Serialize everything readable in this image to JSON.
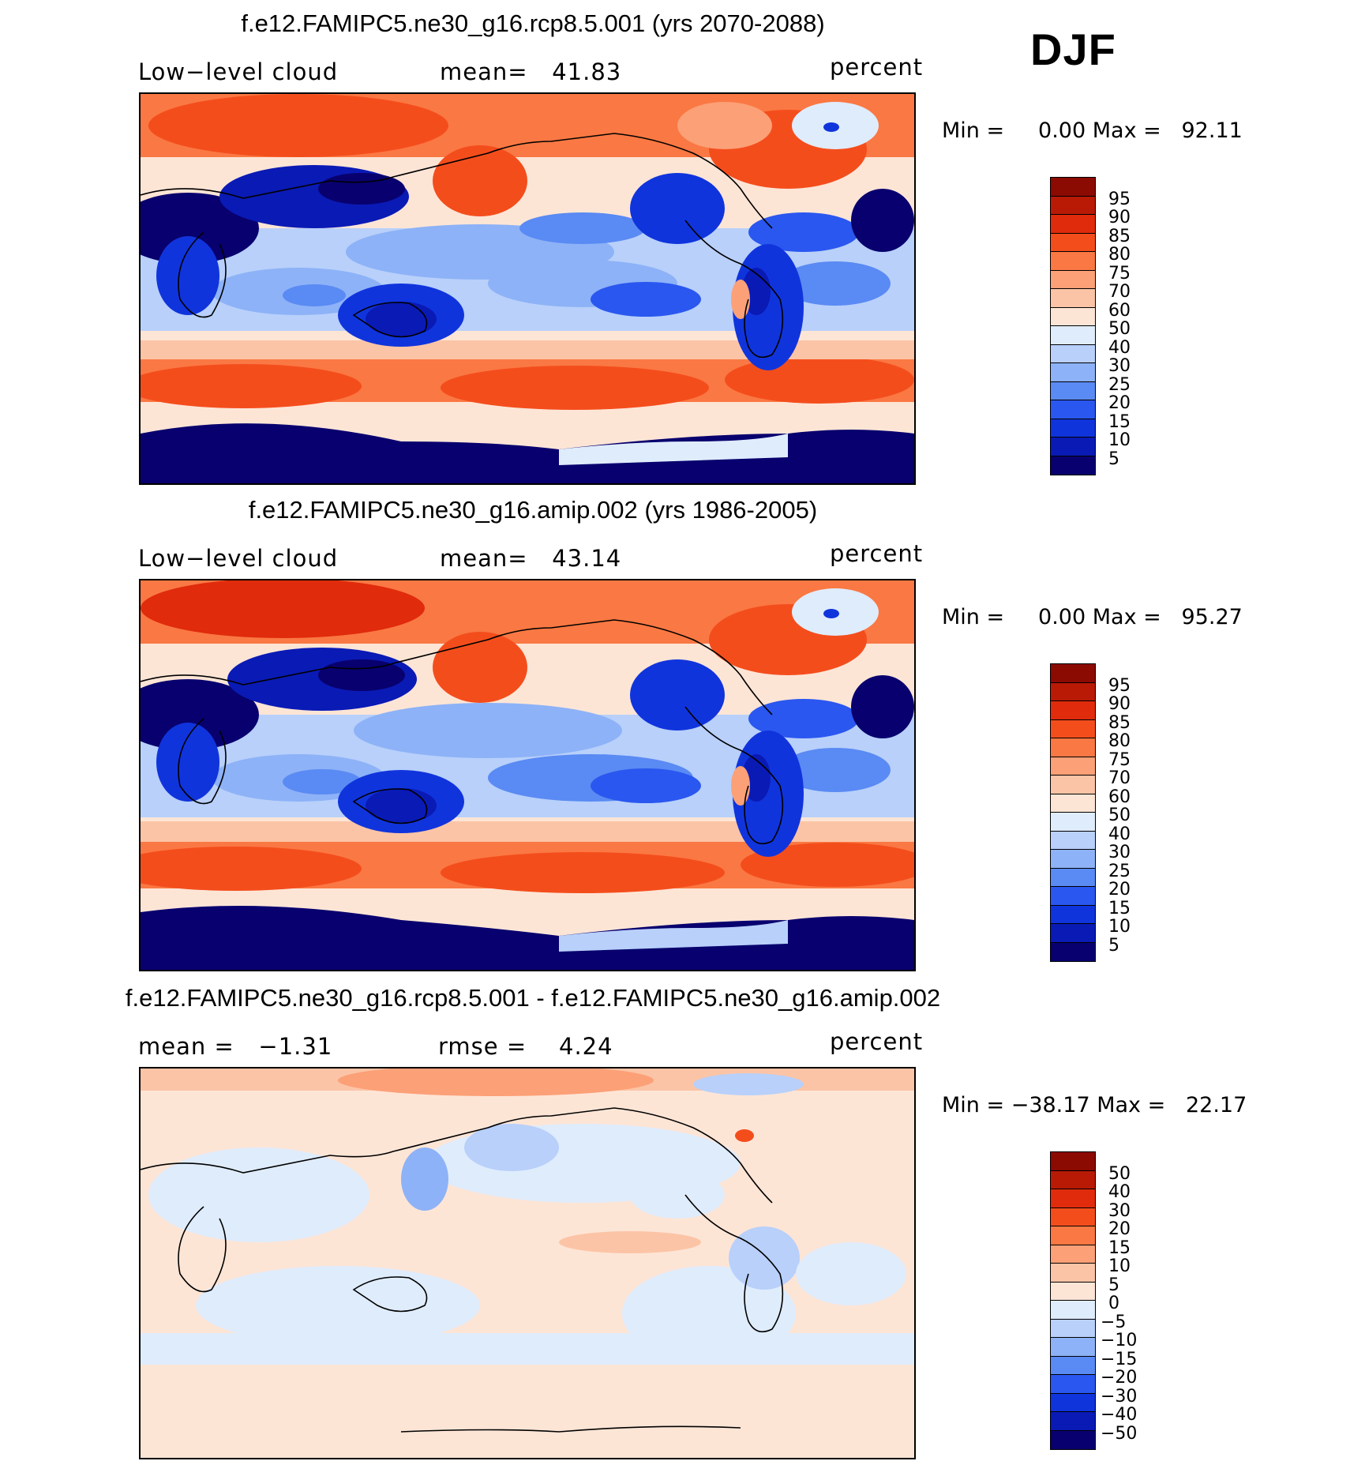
{
  "season": "DJF",
  "colors": {
    "abs_scale": [
      "#08006e",
      "#0a1ab5",
      "#1034dc",
      "#2a57ef",
      "#5a8af3",
      "#8db2f7",
      "#b8d0fa",
      "#dfecfc",
      "#fde5d6",
      "#fcc4a6",
      "#fca077",
      "#fa7843",
      "#f44d1c",
      "#e02b0c",
      "#b81a06",
      "#8b0a02"
    ],
    "diff_scale": [
      "#08006e",
      "#0a1ab5",
      "#1034dc",
      "#2a57ef",
      "#5a8af3",
      "#8db2f7",
      "#b8d0fa",
      "#dfecfc",
      "#fde5d6",
      "#fcc4a6",
      "#fca077",
      "#fa7843",
      "#f44d1c",
      "#e02b0c",
      "#b81a06",
      "#8b0a02"
    ]
  },
  "panels": [
    {
      "title": "f.e12.FAMIPC5.ne30_g16.rcp8.5.001 (yrs 2070-2088)",
      "left_label": "Low−level cloud",
      "center_label": "mean=   41.83",
      "right_label": "percent",
      "minmax": "Min =     0.00 Max =   92.11",
      "scale": "abs_scale",
      "levels": [
        "95",
        "90",
        "85",
        "80",
        "75",
        "70",
        "60",
        "50",
        "40",
        "30",
        "25",
        "20",
        "15",
        "10",
        "5"
      ]
    },
    {
      "title": "f.e12.FAMIPC5.ne30_g16.amip.002 (yrs 1986-2005)",
      "left_label": "Low−level cloud",
      "center_label": "mean=   43.14",
      "right_label": "percent",
      "minmax": "Min =     0.00 Max =   95.27",
      "scale": "abs_scale",
      "levels": [
        "95",
        "90",
        "85",
        "80",
        "75",
        "70",
        "60",
        "50",
        "40",
        "30",
        "25",
        "20",
        "15",
        "10",
        "5"
      ]
    },
    {
      "title": "f.e12.FAMIPC5.ne30_g16.rcp8.5.001 - f.e12.FAMIPC5.ne30_g16.amip.002",
      "left_label": "mean =   −1.31",
      "center_label": "rmse =    4.24",
      "right_label": "percent",
      "minmax": "Min = −38.17 Max =   22.17",
      "scale": "diff_scale",
      "levels": [
        "50",
        "40",
        "30",
        "20",
        "15",
        "10",
        "5",
        "0",
        "−5",
        "−10",
        "−15",
        "−20",
        "−30",
        "−40",
        "−50"
      ]
    }
  ]
}
